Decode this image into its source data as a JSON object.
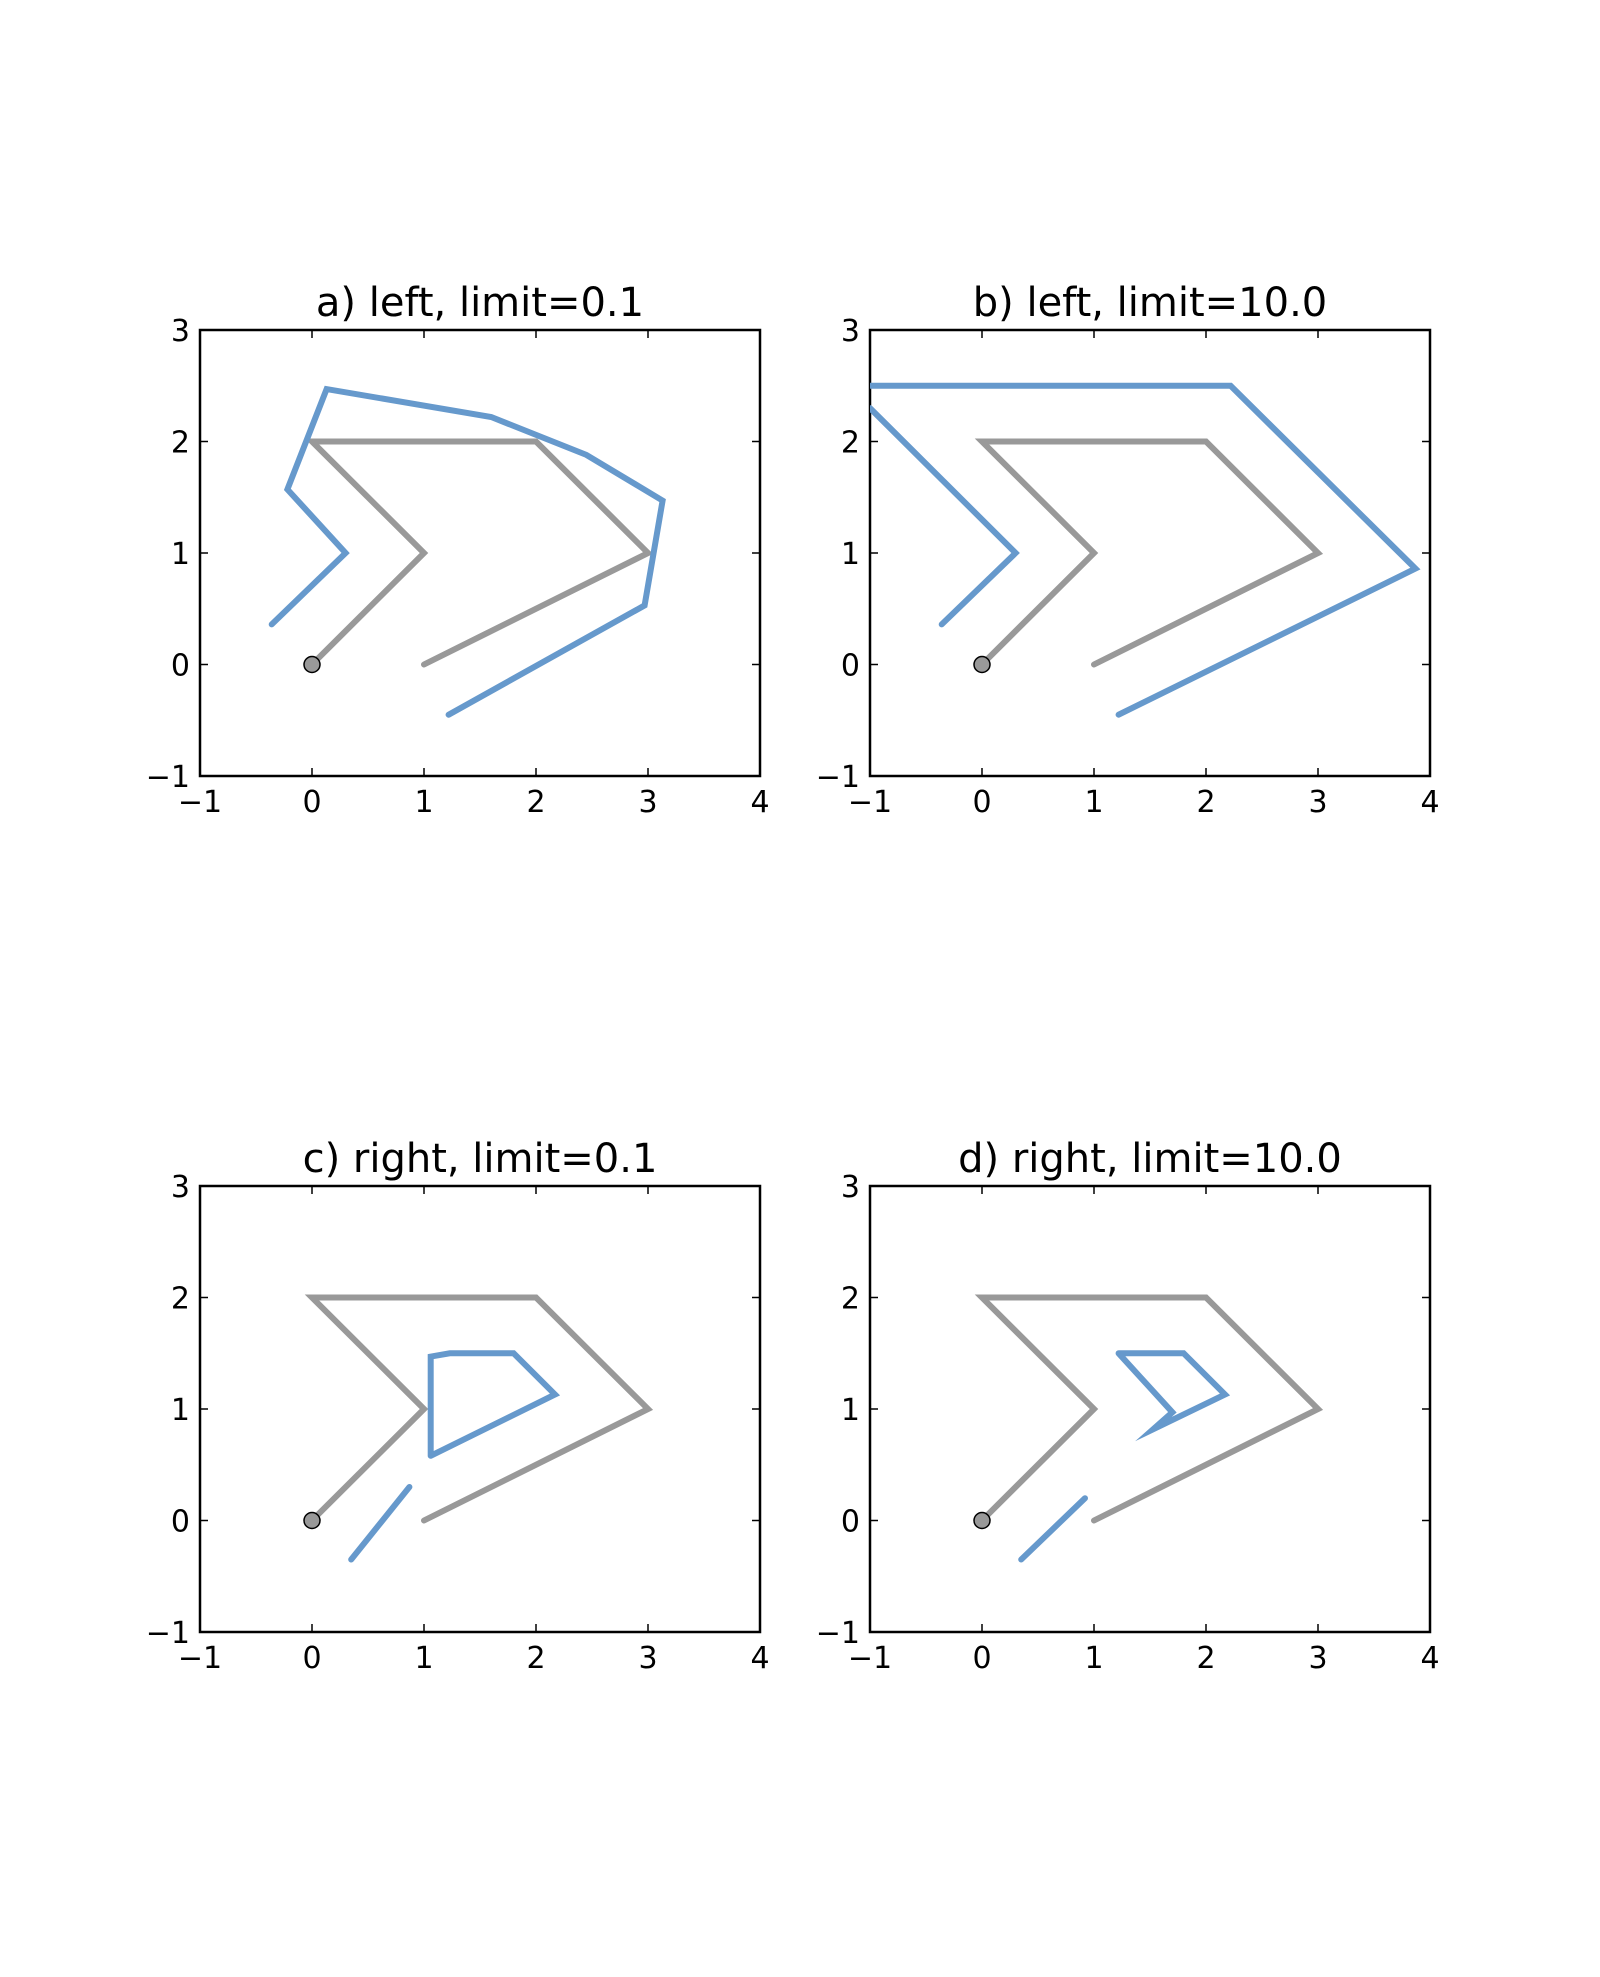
{
  "colors": {
    "reference_path": "#999999",
    "offset_path": "#6699cc",
    "origin_marker": "#999999",
    "axes": "#000000"
  },
  "chart_data": [
    {
      "type": "line",
      "title": "a) left, limit=0.1",
      "xlim": [
        -1,
        4
      ],
      "ylim": [
        -1,
        3
      ],
      "xticks": [
        "−1",
        "0",
        "1",
        "2",
        "3",
        "4"
      ],
      "yticks": [
        "−1",
        "0",
        "1",
        "2",
        "3"
      ],
      "grid": false,
      "origin_marker": [
        0,
        0
      ],
      "series": [
        {
          "role": "reference",
          "x": [
            0,
            1,
            0,
            2,
            3,
            1
          ],
          "y": [
            0,
            1,
            2,
            2,
            1,
            0
          ]
        },
        {
          "role": "offset",
          "x": [
            -0.36,
            0.3,
            -0.22,
            0.13,
            1.6,
            2.45,
            3.13,
            2.97,
            1.22
          ],
          "y": [
            0.36,
            1.0,
            1.57,
            2.47,
            2.22,
            1.88,
            1.47,
            0.53,
            -0.45
          ]
        }
      ]
    },
    {
      "type": "line",
      "title": "b) left, limit=10.0",
      "xlim": [
        -1,
        4
      ],
      "ylim": [
        -1,
        3
      ],
      "xticks": [
        "−1",
        "0",
        "1",
        "2",
        "3",
        "4"
      ],
      "yticks": [
        "−1",
        "0",
        "1",
        "2",
        "3"
      ],
      "grid": false,
      "origin_marker": [
        0,
        0
      ],
      "series": [
        {
          "role": "reference",
          "x": [
            0,
            1,
            0,
            2,
            3,
            1
          ],
          "y": [
            0,
            1,
            2,
            2,
            1,
            0
          ]
        },
        {
          "role": "offset-upper",
          "x": [
            -1.0,
            2.22,
            3.87,
            1.22
          ],
          "y": [
            2.5,
            2.5,
            0.86,
            -0.45
          ]
        },
        {
          "role": "offset-lower",
          "x": [
            -0.36,
            0.3,
            -1.0
          ],
          "y": [
            0.36,
            1.0,
            2.3
          ]
        }
      ]
    },
    {
      "type": "line",
      "title": "c) right, limit=0.1",
      "xlim": [
        -1,
        4
      ],
      "ylim": [
        -1,
        3
      ],
      "xticks": [
        "−1",
        "0",
        "1",
        "2",
        "3",
        "4"
      ],
      "yticks": [
        "−1",
        "0",
        "1",
        "2",
        "3"
      ],
      "grid": false,
      "origin_marker": [
        0,
        0
      ],
      "series": [
        {
          "role": "reference",
          "x": [
            0,
            1,
            0,
            2,
            3,
            1
          ],
          "y": [
            0,
            1,
            2,
            2,
            1,
            0
          ]
        },
        {
          "role": "offset-segment",
          "x": [
            0.35,
            0.87
          ],
          "y": [
            -0.35,
            0.3
          ]
        },
        {
          "role": "offset-loop",
          "x": [
            1.06,
            1.06,
            1.23,
            1.8,
            2.17,
            1.06
          ],
          "y": [
            0.58,
            1.47,
            1.5,
            1.5,
            1.13,
            0.58
          ]
        }
      ]
    },
    {
      "type": "line",
      "title": "d) right, limit=10.0",
      "xlim": [
        -1,
        4
      ],
      "ylim": [
        -1,
        3
      ],
      "xticks": [
        "−1",
        "0",
        "1",
        "2",
        "3",
        "4"
      ],
      "yticks": [
        "−1",
        "0",
        "1",
        "2",
        "3"
      ],
      "grid": false,
      "origin_marker": [
        0,
        0
      ],
      "series": [
        {
          "role": "reference",
          "x": [
            0,
            1,
            0,
            2,
            3,
            1
          ],
          "y": [
            0,
            1,
            2,
            2,
            1,
            0
          ]
        },
        {
          "role": "offset-segment",
          "x": [
            0.35,
            0.92
          ],
          "y": [
            -0.35,
            0.2
          ]
        },
        {
          "role": "offset-loop",
          "x": [
            1.22,
            1.8,
            2.17,
            1.53,
            1.7,
            1.22
          ],
          "y": [
            1.5,
            1.5,
            1.13,
            0.82,
            0.97,
            1.5
          ]
        }
      ]
    }
  ]
}
